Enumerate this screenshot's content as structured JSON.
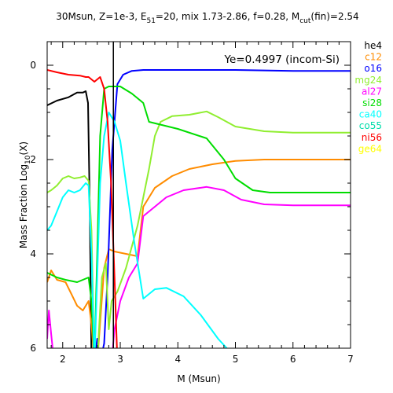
{
  "chart_data": {
    "type": "line",
    "title": {
      "prefix": "30Msun, Z=1e-3, E",
      "e_sub": "51",
      "middle": "=20, mix 1.73-2.86, f=0.28, M",
      "m_sub": "cut",
      "suffix": "(fin)=2.54"
    },
    "xlabel": "M (Msun)",
    "ylabel": {
      "prefix": "Mass Fraction Log",
      "sub": "10",
      "suffix": "(X)"
    },
    "annotation": "Ye=0.4997 (incom-Si)",
    "xlim": [
      1.73,
      7
    ],
    "ylim": [
      -6,
      0.5
    ],
    "x_ticks": [
      {
        "v": 2,
        "label": "2"
      },
      {
        "v": 3,
        "label": "3"
      },
      {
        "v": 4,
        "label": "4"
      },
      {
        "v": 5,
        "label": "5"
      },
      {
        "v": 6,
        "label": "6"
      },
      {
        "v": 7,
        "label": "7"
      }
    ],
    "y_ticks": [
      {
        "v": 0,
        "label": "0"
      },
      {
        "v": -2,
        "label": "2"
      },
      {
        "v": -4,
        "label": "4"
      },
      {
        "v": -6,
        "label": "6"
      }
    ],
    "vline_x": 2.88,
    "series": [
      {
        "name": "he4",
        "color": "#000000",
        "points": [
          [
            1.73,
            -0.85
          ],
          [
            1.9,
            -0.75
          ],
          [
            2.1,
            -0.68
          ],
          [
            2.25,
            -0.58
          ],
          [
            2.35,
            -0.58
          ],
          [
            2.4,
            -0.55
          ],
          [
            2.44,
            -0.8
          ],
          [
            2.47,
            -3
          ],
          [
            2.5,
            -6.3
          ]
        ]
      },
      {
        "name": "c12",
        "color": "#ff8c00",
        "points": [
          [
            1.73,
            -4.6
          ],
          [
            1.8,
            -4.35
          ],
          [
            1.9,
            -4.55
          ],
          [
            2.05,
            -4.6
          ],
          [
            2.15,
            -4.85
          ],
          [
            2.25,
            -5.1
          ],
          [
            2.35,
            -5.2
          ],
          [
            2.45,
            -5.0
          ],
          [
            2.5,
            -5.5
          ],
          [
            2.55,
            -6.3
          ],
          [
            2.6,
            -6.3
          ],
          [
            2.66,
            -5.3
          ],
          [
            2.72,
            -4.3
          ],
          [
            2.8,
            -3.9
          ],
          [
            2.9,
            -3.95
          ],
          [
            3.1,
            -4.0
          ],
          [
            3.3,
            -4.05
          ],
          [
            3.4,
            -3.0
          ],
          [
            3.6,
            -2.6
          ],
          [
            3.9,
            -2.35
          ],
          [
            4.2,
            -2.2
          ],
          [
            4.6,
            -2.1
          ],
          [
            5.0,
            -2.03
          ],
          [
            5.5,
            -2.0
          ],
          [
            6.0,
            -2.0
          ],
          [
            7.0,
            -2.0
          ]
        ]
      },
      {
        "name": "o16",
        "color": "#0000ff",
        "points": [
          [
            2.55,
            -6.3
          ],
          [
            2.6,
            -5.8
          ],
          [
            2.65,
            -6.3
          ],
          [
            2.72,
            -5.9
          ],
          [
            2.78,
            -4.5
          ],
          [
            2.86,
            -1.8
          ],
          [
            2.95,
            -0.4
          ],
          [
            3.05,
            -0.2
          ],
          [
            3.2,
            -0.12
          ],
          [
            3.4,
            -0.1
          ],
          [
            4.0,
            -0.1
          ],
          [
            5.0,
            -0.1
          ],
          [
            6.0,
            -0.12
          ],
          [
            7.0,
            -0.12
          ]
        ]
      },
      {
        "name": "mg24",
        "color": "#90ee30",
        "points": [
          [
            1.73,
            -2.7
          ],
          [
            1.8,
            -2.65
          ],
          [
            1.9,
            -2.55
          ],
          [
            2.0,
            -2.4
          ],
          [
            2.1,
            -2.35
          ],
          [
            2.2,
            -2.4
          ],
          [
            2.3,
            -2.38
          ],
          [
            2.38,
            -2.35
          ],
          [
            2.45,
            -2.45
          ],
          [
            2.5,
            -3.5
          ],
          [
            2.55,
            -6.3
          ],
          [
            2.6,
            -6.3
          ],
          [
            2.68,
            -4.5
          ],
          [
            2.75,
            -4.2
          ],
          [
            2.8,
            -5.6
          ],
          [
            2.85,
            -5.0
          ],
          [
            2.95,
            -4.8
          ],
          [
            3.1,
            -4.3
          ],
          [
            3.3,
            -3.4
          ],
          [
            3.5,
            -2.2
          ],
          [
            3.6,
            -1.5
          ],
          [
            3.7,
            -1.2
          ],
          [
            3.9,
            -1.08
          ],
          [
            4.2,
            -1.05
          ],
          [
            4.5,
            -0.98
          ],
          [
            4.7,
            -1.1
          ],
          [
            5.0,
            -1.3
          ],
          [
            5.5,
            -1.4
          ],
          [
            6.0,
            -1.43
          ],
          [
            7.0,
            -1.43
          ]
        ]
      },
      {
        "name": "al27",
        "color": "#ff00ff",
        "points": [
          [
            1.73,
            -5.8
          ],
          [
            1.76,
            -5.2
          ],
          [
            1.8,
            -5.7
          ],
          [
            1.85,
            -6.3
          ],
          [
            2.3,
            -6.3
          ],
          [
            2.4,
            -6.0
          ],
          [
            2.45,
            -6.3
          ],
          [
            2.85,
            -6.3
          ],
          [
            2.9,
            -5.6
          ],
          [
            3.0,
            -5.0
          ],
          [
            3.15,
            -4.5
          ],
          [
            3.3,
            -4.2
          ],
          [
            3.4,
            -3.2
          ],
          [
            3.6,
            -3.0
          ],
          [
            3.8,
            -2.8
          ],
          [
            4.1,
            -2.65
          ],
          [
            4.5,
            -2.58
          ],
          [
            4.8,
            -2.65
          ],
          [
            5.1,
            -2.85
          ],
          [
            5.5,
            -2.95
          ],
          [
            6.0,
            -2.97
          ],
          [
            7.0,
            -2.97
          ]
        ]
      },
      {
        "name": "si28",
        "color": "#00dd00",
        "points": [
          [
            1.73,
            -4.4
          ],
          [
            1.9,
            -4.5
          ],
          [
            2.05,
            -4.55
          ],
          [
            2.25,
            -4.6
          ],
          [
            2.45,
            -4.5
          ],
          [
            2.5,
            -5.0
          ],
          [
            2.55,
            -6.3
          ],
          [
            2.6,
            -4.0
          ],
          [
            2.65,
            -1.5
          ],
          [
            2.72,
            -0.5
          ],
          [
            2.8,
            -0.45
          ],
          [
            3.0,
            -0.45
          ],
          [
            3.2,
            -0.6
          ],
          [
            3.4,
            -0.8
          ],
          [
            3.5,
            -1.2
          ],
          [
            4.0,
            -1.35
          ],
          [
            4.5,
            -1.55
          ],
          [
            4.8,
            -2.0
          ],
          [
            5.0,
            -2.4
          ],
          [
            5.3,
            -2.65
          ],
          [
            5.6,
            -2.7
          ],
          [
            6.0,
            -2.7
          ],
          [
            7.0,
            -2.7
          ]
        ]
      },
      {
        "name": "ca40",
        "color": "#00ffff",
        "points": [
          [
            1.73,
            -3.5
          ],
          [
            1.8,
            -3.4
          ],
          [
            1.9,
            -3.1
          ],
          [
            2.0,
            -2.8
          ],
          [
            2.1,
            -2.65
          ],
          [
            2.2,
            -2.7
          ],
          [
            2.3,
            -2.65
          ],
          [
            2.4,
            -2.5
          ],
          [
            2.45,
            -2.55
          ],
          [
            2.5,
            -4.0
          ],
          [
            2.55,
            -6.3
          ],
          [
            2.6,
            -4.5
          ],
          [
            2.65,
            -2.5
          ],
          [
            2.72,
            -1.5
          ],
          [
            2.8,
            -1.0
          ],
          [
            2.9,
            -1.2
          ],
          [
            3.0,
            -1.6
          ],
          [
            3.1,
            -2.5
          ],
          [
            3.25,
            -3.8
          ],
          [
            3.4,
            -4.95
          ],
          [
            3.6,
            -4.75
          ],
          [
            3.8,
            -4.72
          ],
          [
            4.1,
            -4.9
          ],
          [
            4.4,
            -5.3
          ],
          [
            4.7,
            -5.8
          ],
          [
            5.0,
            -6.2
          ],
          [
            5.1,
            -6.3
          ]
        ]
      },
      {
        "name": "co55",
        "color": "#00ddaa",
        "points": []
      },
      {
        "name": "ni56",
        "color": "#ff0000",
        "points": [
          [
            1.73,
            -0.1
          ],
          [
            1.9,
            -0.15
          ],
          [
            2.1,
            -0.2
          ],
          [
            2.3,
            -0.22
          ],
          [
            2.4,
            -0.25
          ],
          [
            2.45,
            -0.25
          ],
          [
            2.5,
            -0.3
          ],
          [
            2.55,
            -0.35
          ],
          [
            2.6,
            -0.3
          ],
          [
            2.65,
            -0.25
          ],
          [
            2.72,
            -0.5
          ],
          [
            2.78,
            -1.2
          ],
          [
            2.84,
            -2.5
          ],
          [
            2.9,
            -4.5
          ],
          [
            2.95,
            -6.3
          ]
        ]
      },
      {
        "name": "ge64",
        "color": "#ffff00",
        "points": []
      }
    ]
  }
}
